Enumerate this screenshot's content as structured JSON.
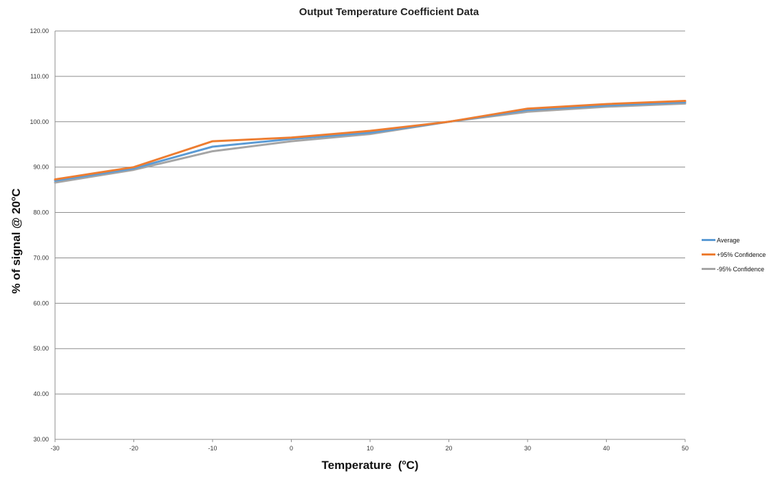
{
  "chart_data": {
    "type": "line",
    "title": "Output Temperature Coefficient Data",
    "xlabel": "Temperature",
    "xlabel_unit_prefix": "(",
    "xlabel_unit_sup": "o",
    "xlabel_unit_suffix": "C)",
    "ylabel": "% of signal @ 20",
    "ylabel_unit_sup": "o",
    "ylabel_unit_suffix": "C",
    "x": [
      -30,
      -20,
      -10,
      0,
      10,
      20,
      30,
      40,
      50
    ],
    "x_tick_labels": [
      "-30",
      "-20",
      "-10",
      "0",
      "10",
      "20",
      "30",
      "40",
      "50"
    ],
    "xlim": [
      -30,
      50
    ],
    "ylim": [
      30,
      120
    ],
    "y_tick_labels": [
      "30.00",
      "40.00",
      "50.00",
      "60.00",
      "70.00",
      "80.00",
      "90.00",
      "100.00",
      "110.00",
      "120.00"
    ],
    "y_ticks": [
      30,
      40,
      50,
      60,
      70,
      80,
      90,
      100,
      110,
      120
    ],
    "grid": true,
    "legend_position": "right",
    "series": [
      {
        "name": "Average",
        "color": "#5b9bd5",
        "values": [
          87.0,
          89.7,
          94.5,
          96.2,
          97.6,
          100.0,
          102.6,
          103.6,
          104.3
        ]
      },
      {
        "name": "+95% Confidence",
        "color": "#ed7d31",
        "values": [
          87.3,
          90.0,
          95.7,
          96.5,
          98.0,
          100.0,
          102.9,
          103.9,
          104.6
        ]
      },
      {
        "name": "-95% Confidence",
        "color": "#a5a5a5",
        "values": [
          86.6,
          89.4,
          93.5,
          95.7,
          97.3,
          100.0,
          102.2,
          103.3,
          104.0
        ]
      }
    ]
  }
}
